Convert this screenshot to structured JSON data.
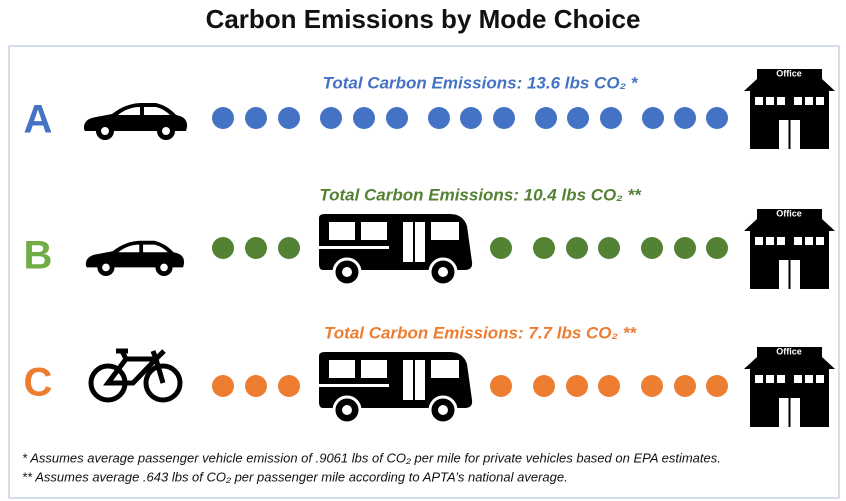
{
  "title": "Carbon Emissions by Mode Choice",
  "rows": [
    {
      "label": "A",
      "emissions": "Total Carbon Emissions: 13.6 lbs CO₂ *",
      "destination": "Office"
    },
    {
      "label": "B",
      "emissions": "Total Carbon Emissions: 10.4 lbs CO₂ **",
      "destination": "Office"
    },
    {
      "label": "C",
      "emissions": "Total Carbon Emissions: 7.7 lbs CO₂ **",
      "destination": "Office"
    }
  ],
  "footnotes": [
    "*   Assumes average passenger vehicle emission of .9061 lbs of CO₂ per mile for private vehicles based on EPA estimates.",
    "** Assumes average .643 lbs of CO₂ per passenger mile according to APTA’s national average."
  ]
}
